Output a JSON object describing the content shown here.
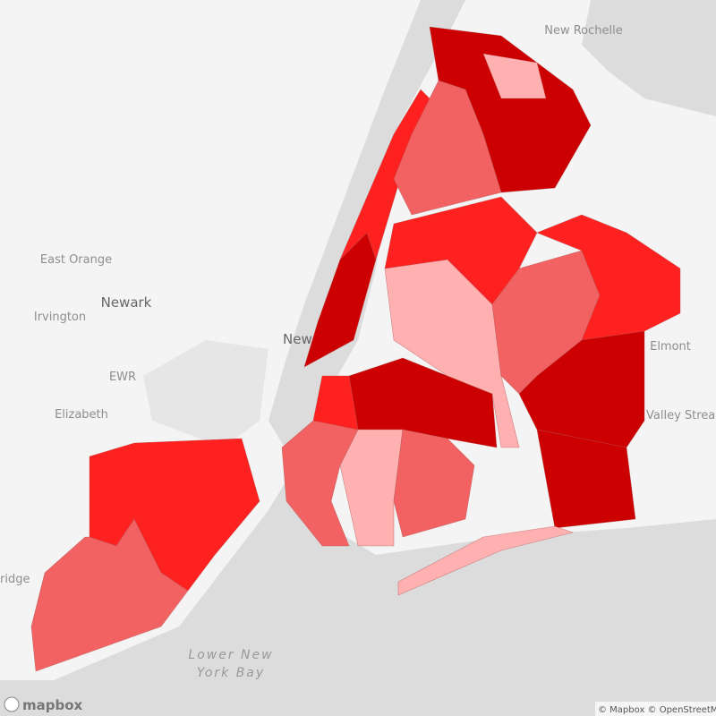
{
  "map": {
    "places": [
      {
        "name": "New Rochelle"
      },
      {
        "name": "East Orange"
      },
      {
        "name": "Newark"
      },
      {
        "name": "Irvington"
      },
      {
        "name": "EWR"
      },
      {
        "name": "Elizabeth"
      },
      {
        "name": "New York"
      },
      {
        "name": "Elmont"
      },
      {
        "name": "Valley Stream"
      },
      {
        "name": "ridge"
      }
    ],
    "water_label": [
      "Lower New",
      "York Bay"
    ],
    "logo": "mapbox",
    "attribution": "© Mapbox © OpenStreetMap"
  }
}
